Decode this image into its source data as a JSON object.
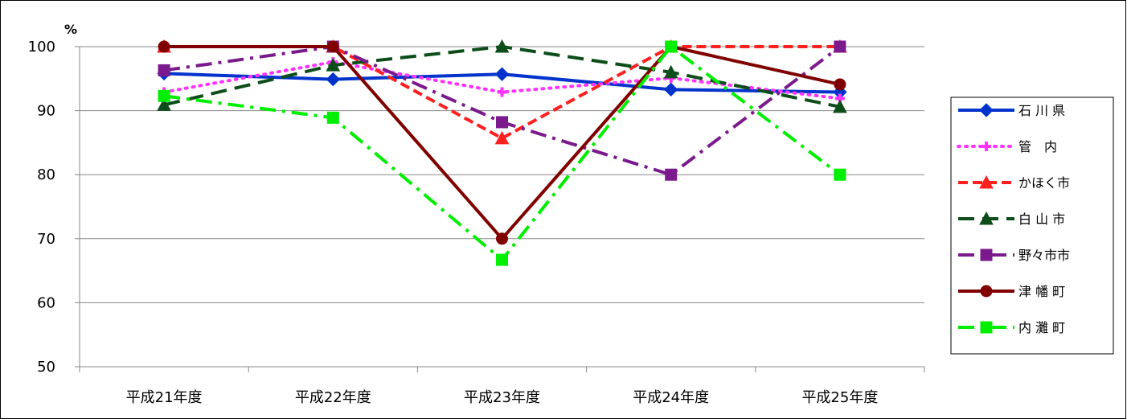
{
  "chart_data": {
    "type": "line",
    "title": "",
    "xlabel": "",
    "ylabel": "",
    "y_unit": "%",
    "ylim": [
      50,
      100
    ],
    "yticks": [
      "50",
      "60",
      "70",
      "80",
      "90",
      "100"
    ],
    "grid": true,
    "legend_position": "right",
    "categories": [
      "平成21年度",
      "平成22年度",
      "平成23年度",
      "平成24年度",
      "平成25年度"
    ],
    "series": [
      {
        "name": "石 川 県",
        "values": [
          95.8,
          94.9,
          95.7,
          93.3,
          92.9
        ],
        "color": "#0033cc",
        "marker": "diamond",
        "dash": "solid"
      },
      {
        "name": "管　内",
        "values": [
          92.9,
          97.6,
          92.9,
          95.1,
          91.9
        ],
        "color": "#ff33ff",
        "marker": "plus",
        "dash": "dot"
      },
      {
        "name": "かほく市",
        "values": [
          100,
          100,
          85.7,
          100,
          100
        ],
        "color": "#ff2020",
        "marker": "triangle",
        "dash": "dash"
      },
      {
        "name": "白 山 市",
        "values": [
          90.9,
          97.1,
          100,
          96,
          90.6
        ],
        "color": "#0d4d1a",
        "marker": "triangle",
        "dash": "longdash"
      },
      {
        "name": "野々市市",
        "values": [
          96.3,
          100,
          88.2,
          80,
          100
        ],
        "color": "#7a1a8c",
        "marker": "square",
        "dash": "dashdot"
      },
      {
        "name": "津 幡 町",
        "values": [
          100,
          100,
          70,
          100,
          94.1
        ],
        "color": "#800000",
        "marker": "circle",
        "dash": "solid"
      },
      {
        "name": "内 灘 町",
        "values": [
          92.3,
          88.9,
          66.7,
          100,
          80
        ],
        "color": "#00ee00",
        "marker": "square",
        "dash": "dashdot"
      }
    ]
  }
}
